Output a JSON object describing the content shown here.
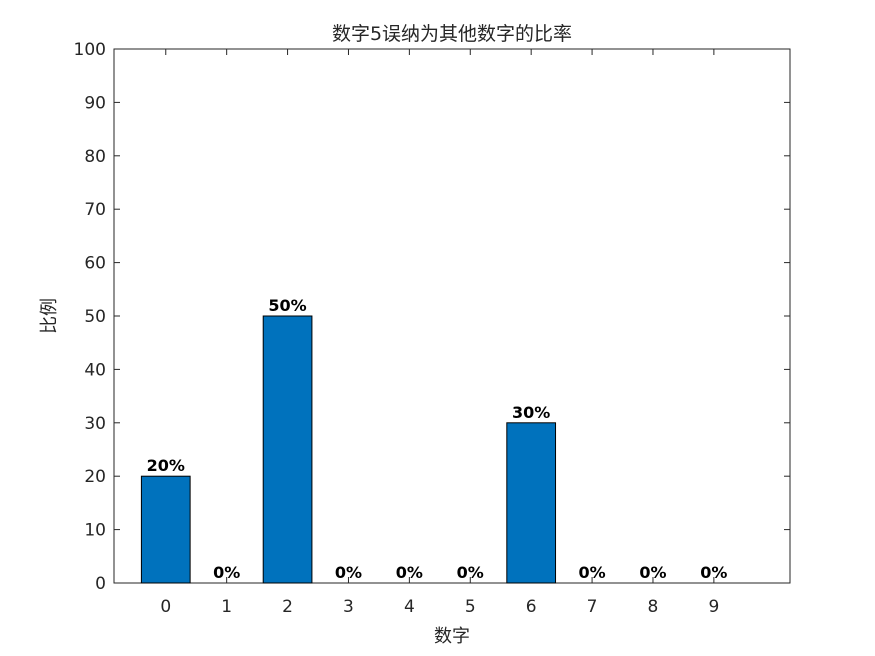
{
  "chart_data": {
    "type": "bar",
    "title": "数字5误纳为其他数字的比率",
    "xlabel": "数字",
    "ylabel": "比例",
    "categories": [
      "0",
      "1",
      "2",
      "3",
      "4",
      "5",
      "6",
      "7",
      "8",
      "9"
    ],
    "values": [
      20,
      0,
      50,
      0,
      0,
      0,
      30,
      0,
      0,
      0
    ],
    "data_labels": [
      "20%",
      "0%",
      "50%",
      "0%",
      "0%",
      "0%",
      "30%",
      "0%",
      "0%",
      "0%"
    ],
    "ylim": [
      0,
      100
    ],
    "yticks": [
      0,
      10,
      20,
      30,
      40,
      50,
      60,
      70,
      80,
      90,
      100
    ],
    "grid": false,
    "bar_color": "#0072BD",
    "axes_color": "#262626"
  }
}
